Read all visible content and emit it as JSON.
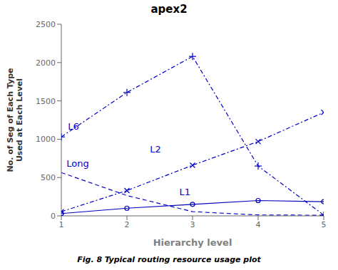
{
  "chart_data": {
    "type": "line",
    "title": "apex2",
    "caption": "Fig. 8 Typical routing resource usage plot",
    "xlabel": "Hierarchy level",
    "ylabel": "No. of Seg of Each Type\nUsed at Each Level",
    "x": [
      1,
      2,
      3,
      4,
      5
    ],
    "xlim": [
      1,
      5
    ],
    "xticks": [
      1,
      2,
      3,
      4,
      5
    ],
    "ylim": [
      0,
      2500
    ],
    "yticks": [
      0,
      500,
      1000,
      1500,
      2000,
      2500
    ],
    "grid": false,
    "series": [
      {
        "name": "L6",
        "color": "#0000cc",
        "line_style": "dashdot",
        "marker": "plus",
        "values": [
          1030,
          1610,
          2080,
          650,
          10
        ]
      },
      {
        "name": "Long",
        "color": "#0000cc",
        "line_style": "dashed",
        "marker": "none",
        "values": [
          565,
          265,
          55,
          12,
          8
        ]
      },
      {
        "name": "L2",
        "color": "#0000cc",
        "line_style": "dashdot",
        "marker": "x",
        "values": [
          55,
          330,
          660,
          970,
          1350
        ]
      },
      {
        "name": "L1",
        "color": "#0000bb",
        "line_style": "solid",
        "marker": "circle",
        "values": [
          30,
          100,
          150,
          200,
          185
        ]
      }
    ],
    "annotations": [
      {
        "text": "L6",
        "x": 1.1,
        "y": 1120,
        "color": "#0000cc"
      },
      {
        "text": "Long",
        "x": 1.08,
        "y": 640,
        "color": "#0000cc"
      },
      {
        "text": "L2",
        "x": 2.35,
        "y": 830,
        "color": "#0000cc"
      },
      {
        "text": "L1",
        "x": 2.8,
        "y": 270,
        "color": "#0000cc"
      }
    ]
  }
}
